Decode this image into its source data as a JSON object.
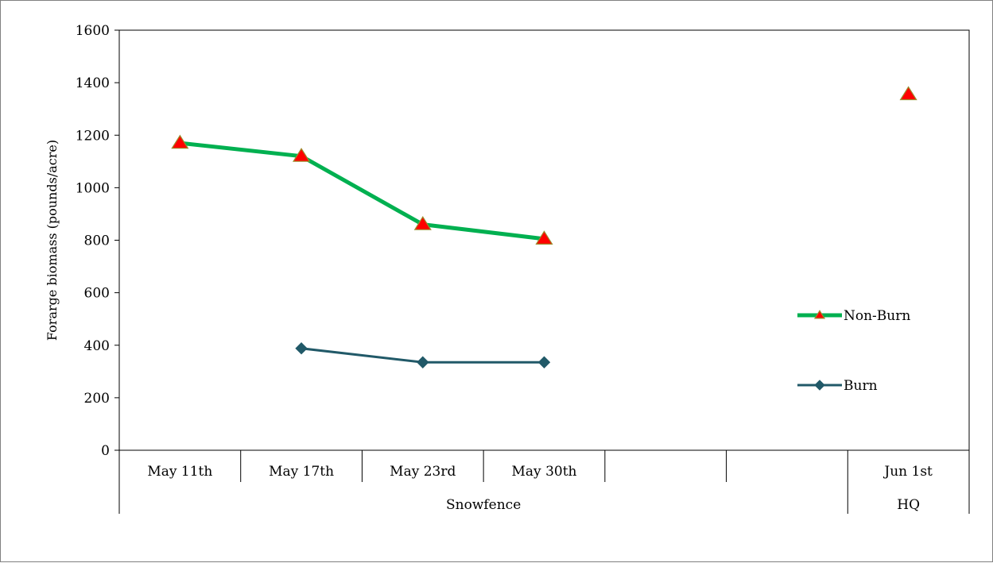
{
  "chart_data": {
    "type": "line",
    "ylabel": "Forarge biomass (pounds/acre)",
    "xlabel": "",
    "ylim": [
      0,
      1600
    ],
    "yticks": [
      0,
      200,
      400,
      600,
      800,
      1000,
      1200,
      1400,
      1600
    ],
    "categories": [
      "May 11th",
      "May 17th",
      "May 23rd",
      "May 30th",
      "",
      "",
      "Jun 1st"
    ],
    "groups": [
      {
        "label": "Snowfence",
        "span": [
          0,
          5
        ]
      },
      {
        "label": "HQ",
        "span": [
          6,
          6
        ]
      }
    ],
    "series": [
      {
        "name": "Non-Burn",
        "color": "#00b050",
        "marker": "triangle",
        "marker_fill": "#ff0000",
        "values": [
          1170,
          1120,
          860,
          805,
          null,
          null,
          1355
        ]
      },
      {
        "name": "Burn",
        "color": "#215968",
        "marker": "diamond",
        "marker_fill": "#215968",
        "values": [
          null,
          388,
          335,
          335,
          null,
          null,
          null
        ]
      }
    ],
    "legend_position": "right",
    "grid": false
  }
}
